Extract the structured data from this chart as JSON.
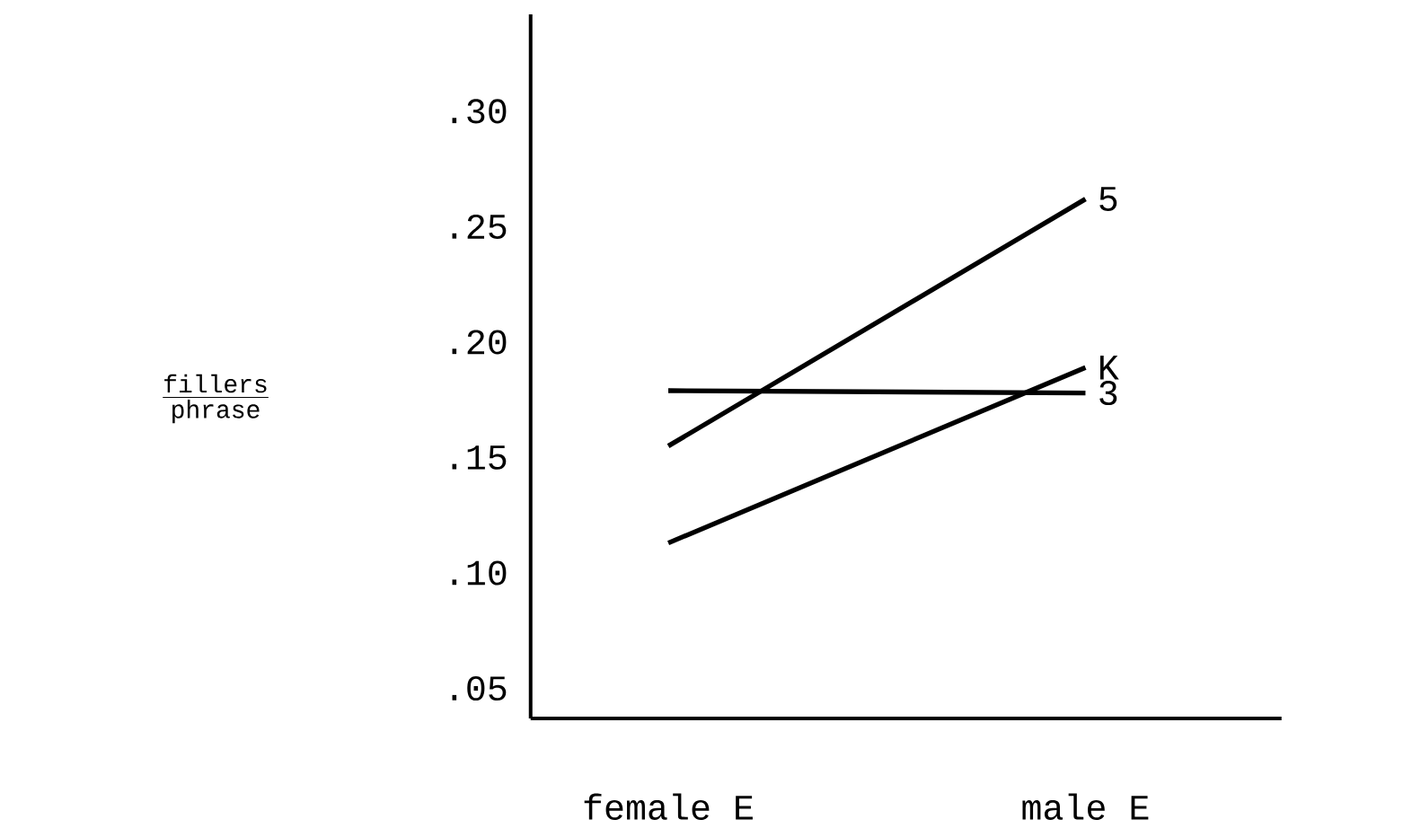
{
  "chart_data": {
    "type": "line",
    "annotations": [
      "\\frac{\\mathtt{fillers}}{\\mathtt{phrase}}"
    ],
    "categories": [
      "female E",
      "male E"
    ],
    "series": [
      {
        "name": "5",
        "color": "#000000",
        "values": [
          0.155,
          0.262
        ]
      },
      {
        "name": "K",
        "color": "#000000",
        "values": [
          0.113,
          0.189
        ]
      },
      {
        "name": "3",
        "color": "#000000",
        "values": [
          0.179,
          0.178
        ]
      }
    ],
    "ylim": [
      0.037,
      0.342
    ],
    "yticks": [
      {
        "value": 0.05,
        "label": ".05"
      },
      {
        "value": 0.1,
        "label": ".10"
      },
      {
        "value": 0.15,
        "label": ".15"
      },
      {
        "value": 0.2,
        "label": ".20"
      },
      {
        "value": 0.25,
        "label": ".25"
      },
      {
        "value": 0.3,
        "label": ".30"
      }
    ],
    "grid": false,
    "legend": false,
    "marker": "none",
    "line_style": "solid"
  }
}
